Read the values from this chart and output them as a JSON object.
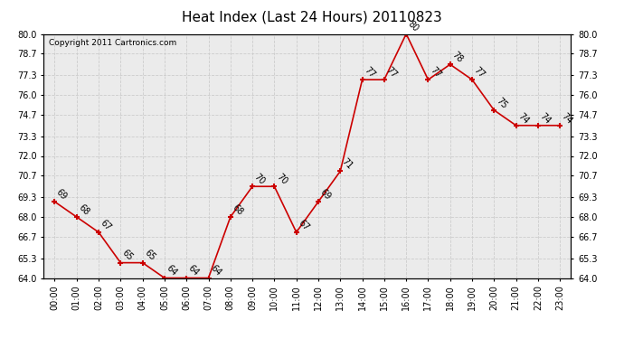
{
  "title": "Heat Index (Last 24 Hours) 20110823",
  "copyright": "Copyright 2011 Cartronics.com",
  "hours": [
    "00:00",
    "01:00",
    "02:00",
    "03:00",
    "04:00",
    "05:00",
    "06:00",
    "07:00",
    "08:00",
    "09:00",
    "10:00",
    "11:00",
    "12:00",
    "13:00",
    "14:00",
    "15:00",
    "16:00",
    "17:00",
    "18:00",
    "19:00",
    "20:00",
    "21:00",
    "22:00",
    "23:00"
  ],
  "values": [
    69,
    68,
    67,
    65,
    65,
    64,
    64,
    64,
    68,
    70,
    70,
    67,
    69,
    71,
    77,
    77,
    80,
    77,
    78,
    77,
    75,
    74,
    74,
    74
  ],
  "ylim": [
    64.0,
    80.0
  ],
  "yticks": [
    64.0,
    65.3,
    66.7,
    68.0,
    69.3,
    70.7,
    72.0,
    73.3,
    74.7,
    76.0,
    77.3,
    78.7,
    80.0
  ],
  "line_color": "#cc0000",
  "marker_color": "#cc0000",
  "bg_color": "#ffffff",
  "plot_bg_color": "#ebebeb",
  "grid_color": "#cccccc",
  "title_fontsize": 11,
  "label_fontsize": 7,
  "tick_fontsize": 7,
  "copyright_fontsize": 6.5
}
